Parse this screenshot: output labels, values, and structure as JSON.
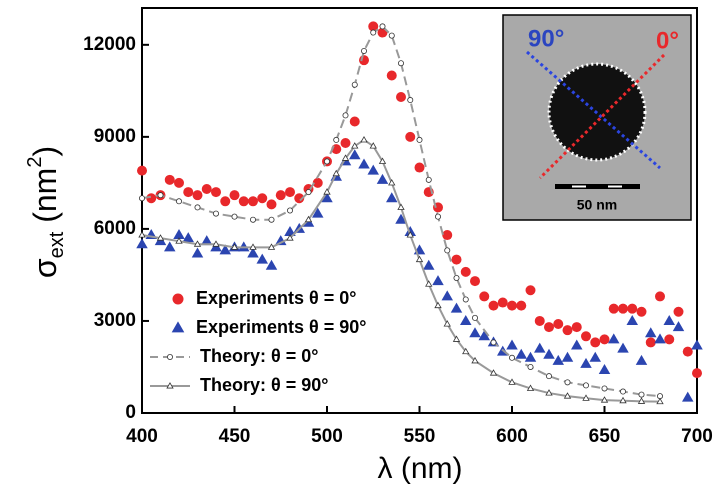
{
  "chart_data": {
    "type": "scatter",
    "xlabel": "λ (nm)",
    "ylabel_parts": [
      "σ",
      "ext",
      " (nm",
      "2",
      ")"
    ],
    "xlim": [
      400,
      700
    ],
    "ylim": [
      0,
      13200
    ],
    "xticks": [
      400,
      450,
      500,
      550,
      600,
      650,
      700
    ],
    "yticks": [
      0,
      3000,
      6000,
      9000,
      12000
    ],
    "legend": "lower-left",
    "annotations": [
      "90°",
      "0°",
      "50 nm"
    ],
    "series": [
      {
        "name": "Experiments θ = 0°",
        "color": "#e8282b",
        "marker": "circle",
        "filled": true,
        "line": "none",
        "x": [
          400,
          405,
          410,
          415,
          420,
          425,
          430,
          435,
          440,
          445,
          450,
          455,
          460,
          465,
          470,
          475,
          480,
          485,
          490,
          495,
          500,
          505,
          510,
          515,
          520,
          525,
          530,
          535,
          540,
          545,
          550,
          555,
          560,
          565,
          570,
          575,
          580,
          585,
          590,
          595,
          600,
          605,
          610,
          615,
          620,
          625,
          630,
          635,
          640,
          645,
          650,
          655,
          660,
          665,
          670,
          675,
          680,
          685,
          690,
          695,
          700
        ],
        "values": [
          7900,
          7000,
          7100,
          7600,
          7500,
          7200,
          7100,
          7300,
          7200,
          6900,
          7100,
          6900,
          6900,
          7000,
          6800,
          7100,
          7200,
          7000,
          7300,
          7500,
          8200,
          8600,
          8800,
          9500,
          11500,
          12600,
          12400,
          11000,
          10300,
          9000,
          8000,
          7200,
          6700,
          5800,
          5000,
          4600,
          4300,
          3800,
          3500,
          3600,
          3500,
          3500,
          4000,
          3000,
          2800,
          2900,
          2700,
          2800,
          2500,
          2300,
          2400,
          3400,
          3400,
          3400,
          3300,
          2300,
          3800,
          2400,
          3300,
          2000,
          1300
        ]
      },
      {
        "name": "Experiments θ = 90°",
        "color": "#2b45b0",
        "marker": "triangle",
        "filled": true,
        "line": "none",
        "x": [
          400,
          405,
          410,
          415,
          420,
          425,
          430,
          435,
          440,
          445,
          450,
          455,
          460,
          465,
          470,
          475,
          480,
          485,
          490,
          495,
          500,
          505,
          510,
          515,
          520,
          525,
          530,
          535,
          540,
          545,
          550,
          555,
          560,
          565,
          570,
          575,
          580,
          585,
          590,
          595,
          600,
          605,
          610,
          615,
          620,
          625,
          630,
          635,
          640,
          645,
          650,
          655,
          660,
          665,
          670,
          675,
          680,
          685,
          690,
          695,
          700
        ],
        "values": [
          5500,
          5800,
          5600,
          5400,
          5800,
          5700,
          5200,
          5600,
          5400,
          5300,
          5400,
          5400,
          5200,
          5000,
          4800,
          5600,
          5900,
          6000,
          6200,
          6500,
          7000,
          7700,
          8200,
          8400,
          8100,
          7900,
          7600,
          7000,
          6300,
          5900,
          5300,
          4800,
          4300,
          3800,
          3400,
          3000,
          2600,
          2500,
          2300,
          2000,
          2200,
          1900,
          1800,
          2100,
          1900,
          1700,
          1800,
          2200,
          1600,
          1800,
          1400,
          2400,
          2100,
          3000,
          1700,
          2600,
          2400,
          3000,
          2800,
          500,
          2200
        ]
      },
      {
        "name": "Theory: θ = 0°",
        "color": "#999999",
        "marker": "circle",
        "filled": false,
        "line": "dashed",
        "x": [
          400,
          410,
          420,
          430,
          440,
          450,
          460,
          470,
          480,
          490,
          500,
          505,
          510,
          515,
          520,
          525,
          530,
          535,
          540,
          545,
          550,
          555,
          560,
          565,
          570,
          575,
          580,
          590,
          600,
          610,
          620,
          630,
          640,
          650,
          660,
          670,
          680
        ],
        "values": [
          7000,
          7100,
          6900,
          6700,
          6500,
          6400,
          6300,
          6300,
          6600,
          7200,
          8200,
          8900,
          9700,
          10700,
          11800,
          12400,
          12600,
          12300,
          11400,
          10200,
          8900,
          7600,
          6400,
          5300,
          4400,
          3700,
          3100,
          2300,
          1800,
          1500,
          1200,
          1000,
          900,
          800,
          700,
          600,
          550
        ]
      },
      {
        "name": "Theory: θ = 90°",
        "color": "#999999",
        "marker": "triangle",
        "filled": false,
        "line": "solid",
        "x": [
          400,
          410,
          420,
          430,
          440,
          450,
          460,
          470,
          480,
          490,
          500,
          505,
          510,
          515,
          520,
          525,
          530,
          535,
          540,
          545,
          550,
          555,
          560,
          565,
          570,
          575,
          580,
          590,
          600,
          610,
          620,
          630,
          640,
          650,
          660,
          670,
          680
        ],
        "values": [
          5800,
          5700,
          5600,
          5500,
          5500,
          5400,
          5400,
          5400,
          5700,
          6300,
          7200,
          7800,
          8300,
          8700,
          8900,
          8700,
          8200,
          7500,
          6700,
          5800,
          5000,
          4200,
          3500,
          2900,
          2400,
          2000,
          1700,
          1300,
          1000,
          800,
          650,
          550,
          480,
          420,
          400,
          380,
          370
        ]
      }
    ]
  }
}
